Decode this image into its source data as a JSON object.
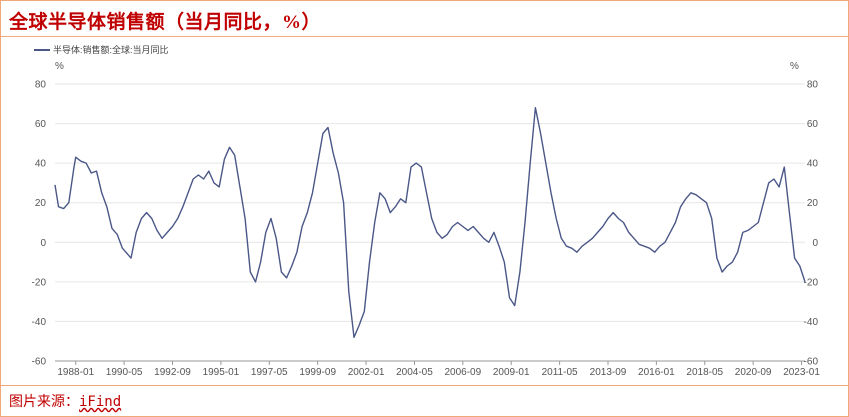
{
  "header": {
    "title": "全球半导体销售额（当月同比，%）"
  },
  "footer": {
    "source_label": "图片来源：",
    "source_value": "iFind"
  },
  "chart_data": {
    "type": "line",
    "xlabel": "",
    "ylabel_left": "%",
    "ylabel_right": "%",
    "ylim": [
      -60,
      80
    ],
    "yticks": [
      80,
      60,
      40,
      20,
      0,
      -20,
      -40,
      -60
    ],
    "x_tick_labels": [
      "1988-01",
      "1990-05",
      "1992-09",
      "1995-01",
      "1997-05",
      "1999-09",
      "2002-01",
      "2004-05",
      "2006-09",
      "2009-01",
      "2011-05",
      "2013-09",
      "2016-01",
      "2018-05",
      "2020-09",
      "2023-01"
    ],
    "x_range": [
      "1987-01",
      "2023-03"
    ],
    "grid": "horizontal",
    "legend_position": "top-left",
    "line_color": "#4a5787",
    "series": [
      {
        "name": "半导体:销售额:全球:当月同比",
        "x": [
          "1987-01",
          "1987-03",
          "1987-06",
          "1987-09",
          "1987-12",
          "1988-01",
          "1988-04",
          "1988-07",
          "1988-10",
          "1989-01",
          "1989-04",
          "1989-07",
          "1989-10",
          "1990-01",
          "1990-04",
          "1990-06",
          "1990-09",
          "1990-12",
          "1991-03",
          "1991-06",
          "1991-09",
          "1991-12",
          "1992-03",
          "1992-06",
          "1992-09",
          "1992-12",
          "1993-03",
          "1993-06",
          "1993-09",
          "1993-12",
          "1994-03",
          "1994-06",
          "1994-09",
          "1994-12",
          "1995-03",
          "1995-06",
          "1995-09",
          "1995-12",
          "1996-03",
          "1996-06",
          "1996-09",
          "1996-12",
          "1997-03",
          "1997-06",
          "1997-09",
          "1997-12",
          "1998-03",
          "1998-06",
          "1998-09",
          "1998-12",
          "1999-03",
          "1999-06",
          "1999-09",
          "1999-12",
          "2000-03",
          "2000-06",
          "2000-09",
          "2000-12",
          "2001-03",
          "2001-06",
          "2001-09",
          "2001-12",
          "2002-03",
          "2002-06",
          "2002-09",
          "2002-12",
          "2003-03",
          "2003-06",
          "2003-09",
          "2003-12",
          "2004-03",
          "2004-06",
          "2004-09",
          "2004-12",
          "2005-03",
          "2005-06",
          "2005-09",
          "2005-12",
          "2006-03",
          "2006-06",
          "2006-09",
          "2006-12",
          "2007-03",
          "2007-06",
          "2007-09",
          "2007-12",
          "2008-03",
          "2008-06",
          "2008-09",
          "2008-12",
          "2009-03",
          "2009-06",
          "2009-09",
          "2009-12",
          "2010-03",
          "2010-06",
          "2010-09",
          "2010-12",
          "2011-03",
          "2011-06",
          "2011-09",
          "2011-12",
          "2012-03",
          "2012-06",
          "2012-09",
          "2012-12",
          "2013-03",
          "2013-06",
          "2013-09",
          "2013-12",
          "2014-03",
          "2014-06",
          "2014-09",
          "2014-12",
          "2015-03",
          "2015-06",
          "2015-09",
          "2015-12",
          "2016-03",
          "2016-06",
          "2016-09",
          "2016-12",
          "2017-03",
          "2017-06",
          "2017-09",
          "2017-12",
          "2018-03",
          "2018-06",
          "2018-09",
          "2018-12",
          "2019-03",
          "2019-06",
          "2019-09",
          "2019-12",
          "2020-03",
          "2020-06",
          "2020-09",
          "2020-12",
          "2021-03",
          "2021-06",
          "2021-09",
          "2021-12",
          "2022-03",
          "2022-06",
          "2022-09",
          "2022-12",
          "2023-03"
        ],
        "values": [
          29,
          18,
          17,
          20,
          38,
          43,
          41,
          40,
          35,
          36,
          25,
          18,
          7,
          4,
          -3,
          -5,
          -8,
          5,
          12,
          15,
          12,
          6,
          2,
          5,
          8,
          12,
          18,
          25,
          32,
          34,
          32,
          36,
          30,
          28,
          42,
          48,
          44,
          28,
          12,
          -15,
          -20,
          -10,
          5,
          12,
          2,
          -15,
          -18,
          -12,
          -5,
          8,
          15,
          25,
          40,
          55,
          58,
          45,
          35,
          20,
          -25,
          -48,
          -42,
          -35,
          -10,
          10,
          25,
          22,
          15,
          18,
          22,
          20,
          38,
          40,
          38,
          25,
          12,
          5,
          2,
          4,
          8,
          10,
          8,
          6,
          8,
          5,
          2,
          0,
          5,
          -2,
          -10,
          -28,
          -32,
          -15,
          10,
          40,
          68,
          55,
          40,
          25,
          12,
          2,
          -2,
          -3,
          -5,
          -2,
          0,
          2,
          5,
          8,
          12,
          15,
          12,
          10,
          5,
          2,
          -1,
          -2,
          -3,
          -5,
          -2,
          0,
          5,
          10,
          18,
          22,
          25,
          24,
          22,
          20,
          12,
          -8,
          -15,
          -12,
          -10,
          -5,
          5,
          6,
          8,
          10,
          20,
          30,
          32,
          28,
          38,
          15,
          -8,
          -12,
          -20
        ]
      }
    ]
  }
}
